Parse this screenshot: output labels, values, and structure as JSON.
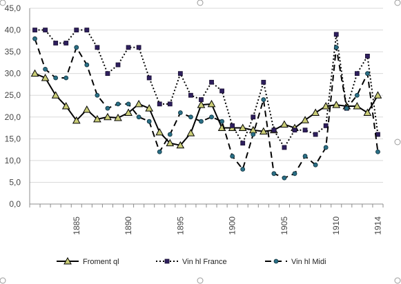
{
  "chart_data": {
    "type": "line",
    "title": "",
    "xlabel": "",
    "ylabel": "",
    "x": [
      1881,
      1882,
      1883,
      1884,
      1885,
      1886,
      1887,
      1888,
      1889,
      1890,
      1891,
      1892,
      1893,
      1894,
      1895,
      1896,
      1897,
      1898,
      1899,
      1900,
      1901,
      1902,
      1903,
      1904,
      1905,
      1906,
      1907,
      1908,
      1909,
      1910,
      1911,
      1912,
      1913,
      1914
    ],
    "x_tick_labels": [
      "1885",
      "1890",
      "1895",
      "1900",
      "1905",
      "1910",
      "1914"
    ],
    "x_tick_values": [
      1885,
      1890,
      1895,
      1900,
      1905,
      1910,
      1914
    ],
    "ylim": [
      0,
      45
    ],
    "y_ticks": [
      "0,0",
      "5,0",
      "10,0",
      "15,0",
      "20,0",
      "25,0",
      "30,0",
      "35,0",
      "40,0",
      "45,0"
    ],
    "grid": "horizontal",
    "legend_position": "bottom",
    "series": [
      {
        "name": "Froment ql",
        "color": "#000000",
        "line_style": "solid",
        "marker": "triangle",
        "marker_color": "#c9cc76",
        "values": [
          30,
          29,
          25,
          22.5,
          19.2,
          21.7,
          19.5,
          20,
          19.8,
          21,
          23,
          22,
          16.5,
          14,
          13.5,
          16.3,
          22.8,
          23,
          17.5,
          17.5,
          17.5,
          17,
          16.7,
          17,
          18.3,
          17.5,
          19.3,
          21,
          22.5,
          22.8,
          22.5,
          22.5,
          21,
          25
        ]
      },
      {
        "name": "Vin hl France",
        "color": "#000000",
        "line_style": "dotted",
        "marker": "square",
        "marker_color": "#2e1f5e",
        "values": [
          40,
          40,
          37,
          37,
          40,
          40,
          36,
          30,
          32,
          36,
          36,
          29,
          23,
          23,
          30,
          25,
          24,
          28,
          26,
          18,
          14,
          20,
          28,
          17,
          13,
          17,
          17,
          16,
          18,
          39,
          22,
          30,
          34,
          16
        ]
      },
      {
        "name": "Vin hl Midi",
        "color": "#000000",
        "line_style": "dashed",
        "marker": "circle",
        "marker_color": "#2a6f86",
        "values": [
          38,
          31,
          29,
          29,
          36,
          32,
          25,
          22,
          23,
          23,
          20,
          19,
          12,
          16,
          21,
          20,
          19,
          20,
          19,
          11,
          8,
          16,
          24,
          7,
          6,
          7,
          11,
          9,
          13,
          36,
          22,
          25,
          30,
          12
        ]
      }
    ]
  }
}
